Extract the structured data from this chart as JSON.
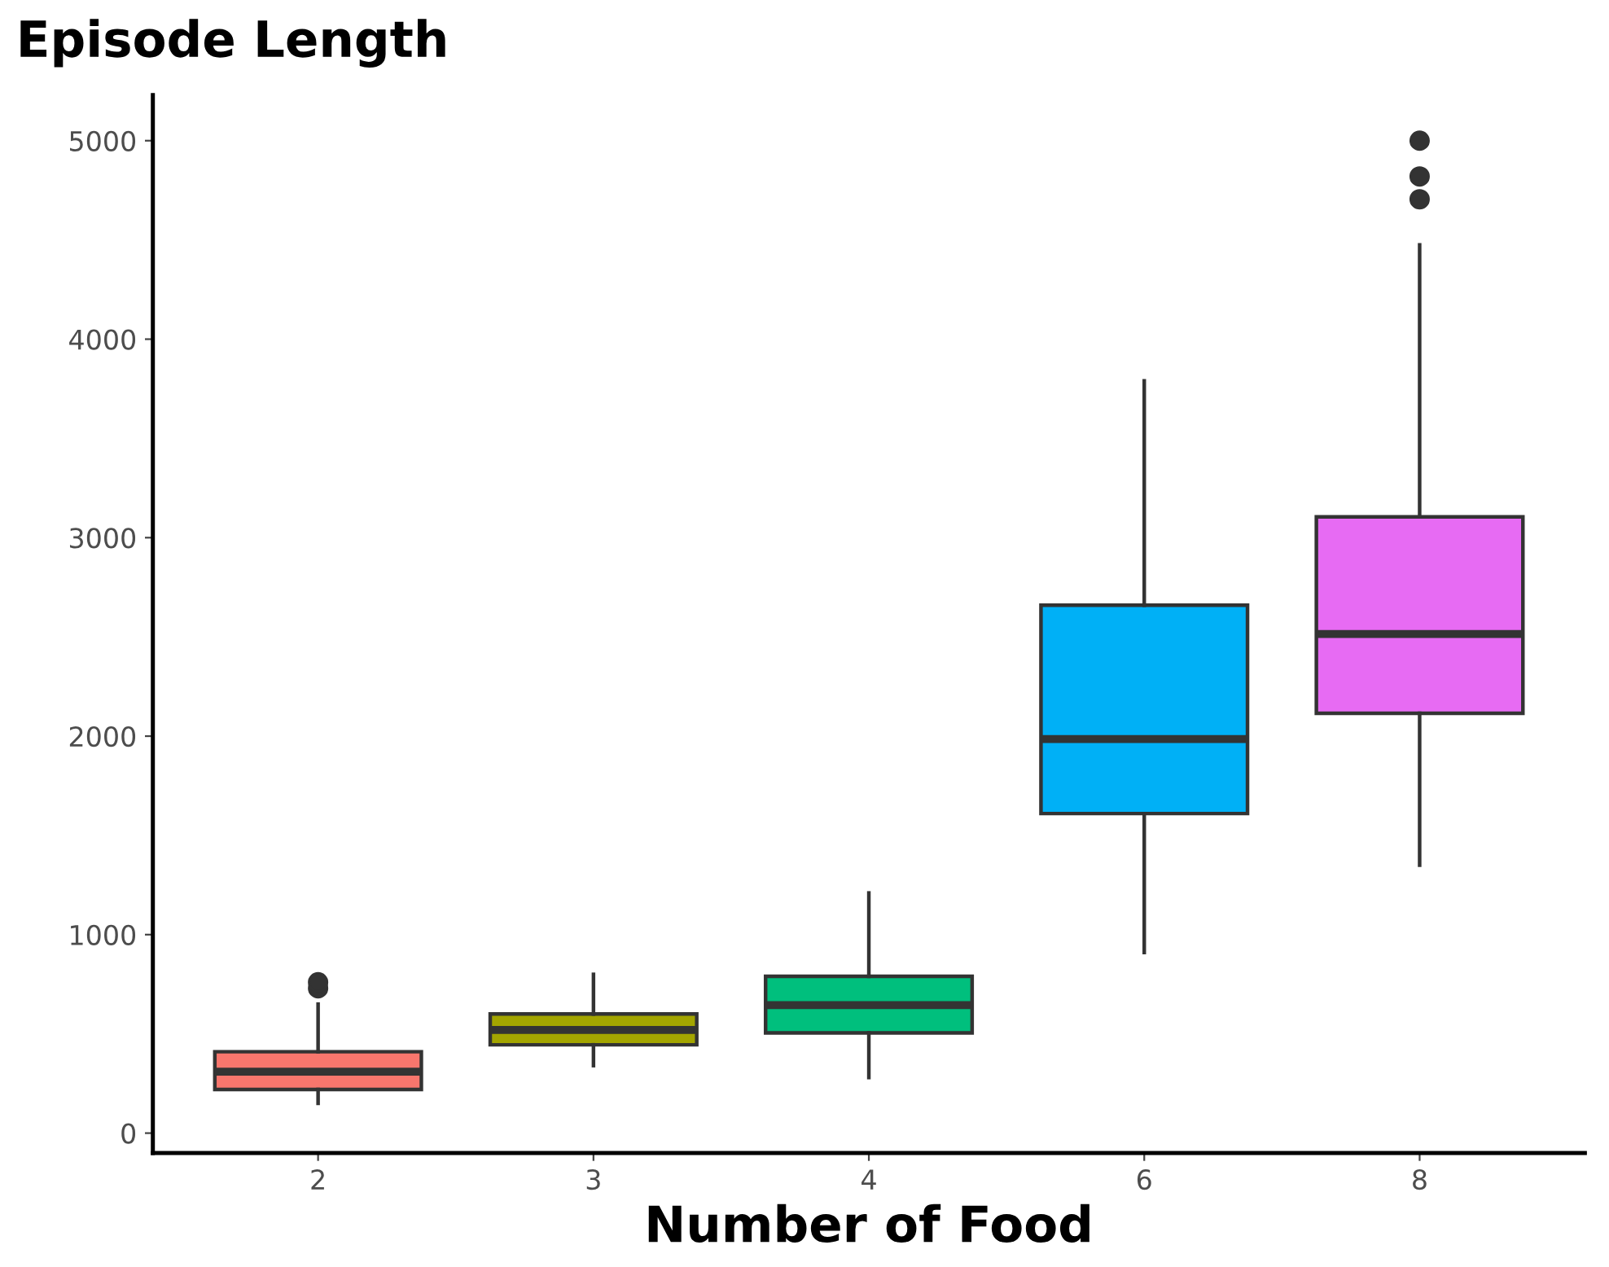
{
  "chart_data": {
    "type": "box",
    "title": "Episode Length",
    "xlabel": "Number of Food",
    "categories": [
      "2",
      "3",
      "4",
      "6",
      "8"
    ],
    "colors": [
      "#f8766d",
      "#a3a500",
      "#00bf7d",
      "#00b0f6",
      "#e76bf3"
    ],
    "boxes": [
      {
        "low": 150,
        "q1": 220,
        "median": 310,
        "q3": 410,
        "high": 650,
        "outliers": [
          730,
          760
        ]
      },
      {
        "low": 340,
        "q1": 445,
        "median": 520,
        "q3": 600,
        "high": 800
      },
      {
        "low": 280,
        "q1": 505,
        "median": 645,
        "q3": 790,
        "high": 1210
      },
      {
        "low": 910,
        "q1": 1610,
        "median": 1985,
        "q3": 2660,
        "high": 3790
      },
      {
        "low": 1350,
        "q1": 2115,
        "median": 2515,
        "q3": 3105,
        "high": 4475,
        "outliers": [
          4705,
          4820,
          5000
        ]
      }
    ],
    "ylim": [
      -100,
      5230
    ],
    "yticks": [
      0,
      1000,
      2000,
      3000,
      4000,
      5000
    ],
    "grid": false
  }
}
